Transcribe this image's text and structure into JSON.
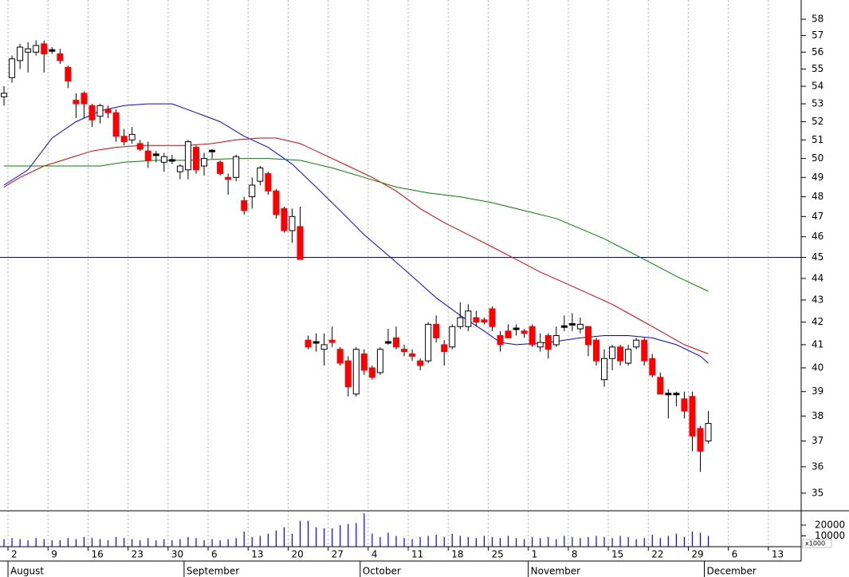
{
  "chart_data": {
    "type": "candlestick",
    "log": true,
    "ylim": [
      34.35,
      59.2
    ],
    "yticks": [
      35,
      36,
      37,
      38,
      39,
      40,
      41,
      42,
      43,
      44,
      45,
      46,
      47,
      48,
      49,
      50,
      51,
      52,
      53,
      54,
      55,
      56,
      57,
      58
    ],
    "xlim": [
      -0.5,
      99.6
    ],
    "xticks": [
      {
        "value": 1,
        "label": "2"
      },
      {
        "value": 6,
        "label": "9"
      },
      {
        "value": 11,
        "label": "16"
      },
      {
        "value": 16,
        "label": "23"
      },
      {
        "value": 21,
        "label": "30"
      },
      {
        "value": 26,
        "label": "6"
      },
      {
        "value": 31,
        "label": "13"
      },
      {
        "value": 36,
        "label": "20"
      },
      {
        "value": 41,
        "label": "27"
      },
      {
        "value": 46,
        "label": "4"
      },
      {
        "value": 51,
        "label": "11"
      },
      {
        "value": 56,
        "label": "18"
      },
      {
        "value": 61,
        "label": "25"
      },
      {
        "value": 66,
        "label": "1"
      },
      {
        "value": 71,
        "label": "8"
      },
      {
        "value": 76,
        "label": "15"
      },
      {
        "value": 81,
        "label": "22"
      },
      {
        "value": 86,
        "label": "29"
      },
      {
        "value": 91,
        "label": "6"
      },
      {
        "value": 96,
        "label": "13"
      }
    ],
    "months": [
      {
        "value": 1,
        "label": "August"
      },
      {
        "value": 23,
        "label": "September"
      },
      {
        "value": 45,
        "label": "October"
      },
      {
        "value": 66,
        "label": "November"
      },
      {
        "value": 88,
        "label": "December"
      }
    ],
    "grid": true,
    "up_color": "#ffffff",
    "down_color": "#ff0000",
    "flat_color": "#000000",
    "open": [
      53.4,
      54.5,
      55.5,
      56.0,
      56.0,
      56.5,
      56.1,
      55.9,
      55.1,
      53.2,
      53.6,
      52.9,
      52.3,
      52.7,
      52.5,
      51.2,
      51.0,
      50.8,
      50.4,
      50.2,
      49.8,
      49.9,
      49.3,
      49.4,
      50.6,
      49.6,
      50.4,
      49.8,
      49.0,
      49.0,
      47.8,
      48.0,
      48.8,
      49.2,
      48.3,
      47.4,
      46.3,
      46.5,
      41.2,
      41.1,
      40.8,
      41.2,
      40.8,
      40.3,
      38.9,
      40.6,
      40.0,
      39.8,
      41.1,
      41.3,
      40.8,
      40.6,
      40.3,
      40.3,
      41.9,
      41.0,
      40.9,
      41.8,
      41.8,
      42.2,
      42.1,
      42.6,
      41.4,
      41.6,
      41.7,
      41.6,
      41.8,
      40.9,
      41.4,
      41.0,
      41.8,
      41.9,
      41.7,
      41.8,
      41.2,
      39.5,
      40.4,
      40.9,
      40.2,
      40.9,
      41.2,
      40.4,
      39.6,
      38.9,
      38.9,
      38.7,
      38.8,
      37.5,
      37.0
    ],
    "high": [
      54.0,
      55.8,
      56.5,
      56.6,
      56.7,
      56.7,
      56.3,
      56.2,
      55.2,
      53.6,
      53.7,
      53.0,
      53.0,
      52.9,
      52.7,
      51.6,
      51.7,
      51.0,
      50.9,
      50.4,
      50.3,
      50.2,
      49.7,
      51.0,
      50.7,
      50.3,
      50.5,
      49.9,
      49.2,
      50.2,
      48.0,
      49.0,
      49.6,
      49.3,
      48.4,
      47.5,
      47.4,
      47.5,
      41.4,
      41.5,
      41.5,
      41.8,
      40.9,
      40.5,
      40.9,
      40.8,
      40.1,
      40.9,
      41.7,
      41.8,
      41.0,
      40.8,
      40.4,
      42.0,
      42.3,
      41.2,
      41.9,
      42.9,
      42.8,
      42.5,
      42.2,
      42.7,
      41.6,
      41.9,
      41.9,
      41.7,
      41.9,
      41.5,
      41.5,
      41.8,
      42.3,
      42.4,
      42.2,
      41.8,
      41.3,
      40.8,
      41.0,
      41.0,
      41.0,
      41.3,
      41.3,
      40.6,
      39.8,
      39.1,
      39.0,
      39.0,
      39.0,
      37.6,
      38.2
    ],
    "low": [
      52.9,
      54.2,
      55.0,
      54.8,
      55.8,
      54.8,
      55.9,
      55.3,
      53.9,
      52.2,
      52.2,
      51.7,
      51.9,
      52.2,
      50.9,
      50.7,
      50.8,
      50.4,
      49.5,
      49.8,
      49.3,
      49.7,
      48.9,
      48.9,
      49.2,
      49.1,
      50.0,
      49.1,
      48.1,
      48.8,
      47.1,
      47.4,
      48.6,
      48.1,
      46.9,
      46.2,
      45.7,
      44.9,
      40.8,
      40.7,
      40.1,
      40.9,
      40.1,
      38.8,
      38.8,
      39.7,
      39.5,
      39.7,
      41.0,
      40.8,
      40.5,
      40.3,
      39.9,
      40.2,
      41.1,
      40.1,
      40.8,
      41.7,
      41.6,
      41.8,
      41.9,
      41.6,
      40.7,
      41.3,
      41.4,
      41.3,
      40.9,
      40.7,
      40.4,
      40.9,
      41.6,
      41.6,
      41.5,
      40.5,
      40.1,
      39.2,
      39.9,
      40.1,
      40.1,
      40.8,
      40.1,
      39.6,
      38.9,
      37.9,
      38.4,
      37.9,
      36.6,
      35.8,
      36.9
    ],
    "close": [
      53.6,
      55.6,
      56.3,
      56.2,
      56.4,
      55.9,
      56.1,
      55.5,
      54.3,
      53.0,
      53.0,
      52.1,
      52.9,
      52.5,
      51.2,
      50.9,
      51.3,
      50.5,
      49.9,
      50.2,
      50.1,
      49.9,
      49.6,
      50.9,
      49.4,
      50.0,
      50.4,
      49.2,
      48.9,
      50.1,
      47.3,
      48.6,
      49.5,
      48.3,
      47.1,
      46.3,
      47.0,
      44.9,
      40.9,
      41.1,
      41.0,
      41.1,
      40.2,
      39.2,
      40.8,
      39.9,
      39.6,
      40.8,
      41.1,
      40.9,
      40.7,
      40.5,
      40.1,
      41.9,
      41.3,
      40.7,
      41.8,
      42.2,
      42.5,
      42.0,
      42.0,
      41.8,
      41.0,
      41.3,
      41.7,
      41.5,
      41.0,
      41.1,
      40.8,
      41.4,
      41.8,
      41.9,
      41.9,
      41.0,
      40.3,
      40.4,
      40.9,
      40.3,
      40.8,
      41.2,
      40.3,
      39.7,
      38.9,
      38.9,
      38.9,
      38.2,
      37.2,
      36.6,
      37.7
    ],
    "hline": 45,
    "hline_color": "#0000c0",
    "moving_averages": [
      {
        "color": "#0000ff",
        "x": [
          0,
          3,
          6,
          9,
          12,
          15,
          18,
          21,
          24,
          27,
          30,
          33,
          36,
          39,
          42,
          45,
          48,
          51,
          54,
          57,
          60,
          62,
          64,
          68,
          72,
          75,
          78,
          81,
          84,
          87,
          88
        ],
        "values": [
          48.6,
          49.4,
          51.1,
          52.0,
          52.6,
          52.9,
          53.0,
          53.0,
          52.5,
          52.0,
          51.2,
          50.6,
          49.7,
          48.5,
          47.3,
          46.1,
          45.1,
          44.1,
          43.1,
          42.3,
          41.6,
          41.1,
          41.0,
          41.1,
          41.3,
          41.4,
          41.4,
          41.3,
          41.0,
          40.5,
          40.2
        ]
      },
      {
        "color": "#e00000",
        "x": [
          0,
          2,
          5,
          8,
          11,
          14,
          17,
          20,
          23,
          26,
          29,
          32,
          34,
          37,
          40,
          43,
          46,
          49,
          52,
          55,
          58,
          61,
          64,
          67,
          70,
          73,
          76,
          79,
          82,
          85,
          88
        ],
        "values": [
          48.5,
          49.0,
          49.6,
          50.0,
          50.4,
          50.6,
          50.7,
          50.7,
          50.7,
          50.8,
          51.0,
          51.1,
          51.1,
          50.8,
          50.2,
          49.6,
          49.0,
          48.3,
          47.4,
          46.7,
          46.1,
          45.5,
          44.9,
          44.3,
          43.8,
          43.3,
          42.8,
          42.2,
          41.6,
          41.0,
          40.6
        ]
      },
      {
        "color": "#008000",
        "x": [
          0,
          4,
          9,
          12,
          15,
          19,
          23,
          29,
          33,
          37,
          41,
          45,
          49,
          53,
          57,
          61,
          65,
          69,
          72,
          75,
          78,
          81,
          84,
          88
        ],
        "values": [
          49.6,
          49.6,
          49.6,
          49.6,
          49.8,
          49.9,
          49.9,
          50.0,
          50.0,
          49.9,
          49.5,
          49.0,
          48.5,
          48.2,
          48.0,
          47.7,
          47.3,
          46.9,
          46.4,
          45.9,
          45.3,
          44.7,
          44.1,
          43.4
        ]
      }
    ],
    "volume": {
      "color": "#0000ff",
      "ylim": [
        0,
        33300
      ],
      "yticks": [
        10000,
        20000
      ],
      "unit_label": "x1000",
      "values": [
        7000,
        8000,
        7000,
        6000,
        8000,
        7000,
        6000,
        6000,
        8000,
        7000,
        9000,
        8000,
        7000,
        6000,
        9000,
        8000,
        7000,
        6000,
        8000,
        6000,
        7000,
        6000,
        7000,
        9000,
        8000,
        6000,
        7000,
        6000,
        7000,
        8000,
        14000,
        9000,
        10000,
        12000,
        15000,
        18000,
        12000,
        24000,
        24000,
        18000,
        17000,
        17000,
        20000,
        21000,
        22000,
        31000,
        12000,
        9000,
        13000,
        10000,
        8000,
        7000,
        9000,
        10000,
        11000,
        9000,
        12000,
        10000,
        9000,
        8000,
        10000,
        9000,
        8000,
        10000,
        8000,
        7000,
        9000,
        8000,
        9000,
        7000,
        10000,
        9000,
        8000,
        9000,
        10000,
        9000,
        8000,
        10000,
        9000,
        7000,
        8000,
        11000,
        8000,
        10000,
        12000,
        9000,
        14000,
        13000,
        10000
      ]
    }
  }
}
